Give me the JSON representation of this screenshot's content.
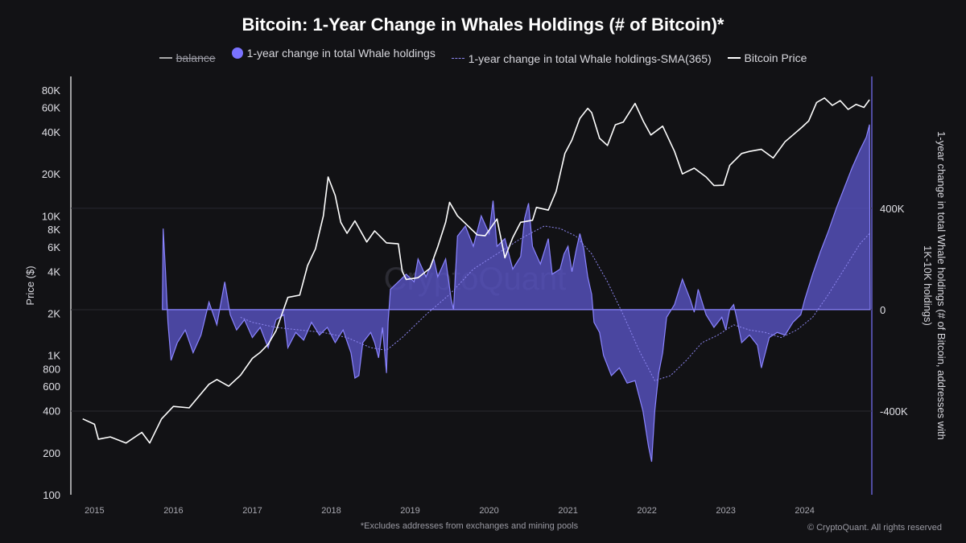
{
  "chart_data": {
    "type": "line",
    "title": "Bitcoin: 1-Year Change in Whales Holdings (# of Bitcoin)*",
    "legend": [
      {
        "name": "balance",
        "style": "line-strikethrough",
        "color": "#aaaaaa"
      },
      {
        "name": "1-year change in total Whale holdings",
        "style": "area",
        "color": "#7a72ff"
      },
      {
        "name": "1-year change in total Whale holdings-SMA(365)",
        "style": "dashed",
        "color": "#8d86f0"
      },
      {
        "name": "Bitcoin Price",
        "style": "line",
        "color": "#ffffff"
      }
    ],
    "ylabel_left": "Price ($)",
    "ylabel_right": "1-year change in total Whale holdings (# of Bitcoin, addresses with 1K-10K holdings)",
    "y_left_scale": "log",
    "y_left_range": [
      100,
      100000
    ],
    "y_left_ticks": [
      {
        "label": "80K",
        "value": 80000
      },
      {
        "label": "60K",
        "value": 60000
      },
      {
        "label": "40K",
        "value": 40000
      },
      {
        "label": "20K",
        "value": 20000
      },
      {
        "label": "10K",
        "value": 10000
      },
      {
        "label": "8K",
        "value": 8000
      },
      {
        "label": "6K",
        "value": 6000
      },
      {
        "label": "4K",
        "value": 4000
      },
      {
        "label": "2K",
        "value": 2000
      },
      {
        "label": "1K",
        "value": 1000
      },
      {
        "label": "800",
        "value": 800
      },
      {
        "label": "600",
        "value": 600
      },
      {
        "label": "400",
        "value": 400
      },
      {
        "label": "200",
        "value": 200
      },
      {
        "label": "100",
        "value": 100
      }
    ],
    "y_right_range": [
      -730000,
      920000
    ],
    "y_right_ticks": [
      {
        "label": "400K",
        "value": 400000
      },
      {
        "label": "0",
        "value": 0
      },
      {
        "label": "-400K",
        "value": -400000
      }
    ],
    "x_range": [
      2014.7,
      2024.85
    ],
    "x_ticks": [
      {
        "label": "2015",
        "value": 2015
      },
      {
        "label": "2016",
        "value": 2016
      },
      {
        "label": "2017",
        "value": 2017
      },
      {
        "label": "2018",
        "value": 2018
      },
      {
        "label": "2019",
        "value": 2019
      },
      {
        "label": "2020",
        "value": 2020
      },
      {
        "label": "2021",
        "value": 2021
      },
      {
        "label": "2022",
        "value": 2022
      },
      {
        "label": "2023",
        "value": 2023
      },
      {
        "label": "2024",
        "value": 2024
      }
    ],
    "series": [
      {
        "name": "Bitcoin Price",
        "axis": "left",
        "points": [
          [
            2014.85,
            350
          ],
          [
            2015.0,
            320
          ],
          [
            2015.05,
            250
          ],
          [
            2015.2,
            260
          ],
          [
            2015.4,
            235
          ],
          [
            2015.6,
            280
          ],
          [
            2015.7,
            235
          ],
          [
            2015.85,
            350
          ],
          [
            2016.0,
            430
          ],
          [
            2016.2,
            420
          ],
          [
            2016.45,
            620
          ],
          [
            2016.55,
            670
          ],
          [
            2016.7,
            600
          ],
          [
            2016.85,
            720
          ],
          [
            2017.0,
            950
          ],
          [
            2017.1,
            1050
          ],
          [
            2017.2,
            1200
          ],
          [
            2017.3,
            1500
          ],
          [
            2017.45,
            2600
          ],
          [
            2017.6,
            2700
          ],
          [
            2017.7,
            4400
          ],
          [
            2017.8,
            5800
          ],
          [
            2017.9,
            10000
          ],
          [
            2017.96,
            19000
          ],
          [
            2018.05,
            14000
          ],
          [
            2018.12,
            9000
          ],
          [
            2018.2,
            7500
          ],
          [
            2018.3,
            9200
          ],
          [
            2018.45,
            6500
          ],
          [
            2018.55,
            7800
          ],
          [
            2018.7,
            6400
          ],
          [
            2018.85,
            6300
          ],
          [
            2018.9,
            4000
          ],
          [
            2018.95,
            3500
          ],
          [
            2019.1,
            3600
          ],
          [
            2019.25,
            4200
          ],
          [
            2019.35,
            6000
          ],
          [
            2019.45,
            9000
          ],
          [
            2019.5,
            12500
          ],
          [
            2019.6,
            10000
          ],
          [
            2019.75,
            8300
          ],
          [
            2019.85,
            7300
          ],
          [
            2019.95,
            7200
          ],
          [
            2020.1,
            9500
          ],
          [
            2020.2,
            5000
          ],
          [
            2020.3,
            7000
          ],
          [
            2020.4,
            9000
          ],
          [
            2020.55,
            9300
          ],
          [
            2020.6,
            11500
          ],
          [
            2020.75,
            11000
          ],
          [
            2020.85,
            15000
          ],
          [
            2020.96,
            28000
          ],
          [
            2021.05,
            35000
          ],
          [
            2021.15,
            50000
          ],
          [
            2021.25,
            59000
          ],
          [
            2021.3,
            55000
          ],
          [
            2021.4,
            36000
          ],
          [
            2021.5,
            32000
          ],
          [
            2021.6,
            45000
          ],
          [
            2021.7,
            47000
          ],
          [
            2021.85,
            64000
          ],
          [
            2021.96,
            47000
          ],
          [
            2022.05,
            38000
          ],
          [
            2022.2,
            44000
          ],
          [
            2022.35,
            29000
          ],
          [
            2022.45,
            20000
          ],
          [
            2022.6,
            22000
          ],
          [
            2022.75,
            19000
          ],
          [
            2022.85,
            16500
          ],
          [
            2022.97,
            16600
          ],
          [
            2023.05,
            23000
          ],
          [
            2023.2,
            28000
          ],
          [
            2023.3,
            29000
          ],
          [
            2023.45,
            30000
          ],
          [
            2023.6,
            26000
          ],
          [
            2023.75,
            34000
          ],
          [
            2023.85,
            38000
          ],
          [
            2023.96,
            43000
          ],
          [
            2024.05,
            48000
          ],
          [
            2024.15,
            65000
          ],
          [
            2024.25,
            70000
          ],
          [
            2024.35,
            62000
          ],
          [
            2024.45,
            67000
          ],
          [
            2024.55,
            58000
          ],
          [
            2024.65,
            63000
          ],
          [
            2024.75,
            60000
          ],
          [
            2024.82,
            68000
          ]
        ]
      },
      {
        "name": "1-year change in total Whale holdings",
        "axis": "right",
        "points": [
          [
            2015.86,
            0
          ],
          [
            2015.87,
            320000
          ],
          [
            2015.9,
            150000
          ],
          [
            2015.93,
            -50000
          ],
          [
            2015.97,
            -200000
          ],
          [
            2016.05,
            -130000
          ],
          [
            2016.15,
            -80000
          ],
          [
            2016.25,
            -170000
          ],
          [
            2016.35,
            -100000
          ],
          [
            2016.45,
            30000
          ],
          [
            2016.55,
            -60000
          ],
          [
            2016.65,
            110000
          ],
          [
            2016.72,
            -20000
          ],
          [
            2016.8,
            -80000
          ],
          [
            2016.9,
            -40000
          ],
          [
            2017.0,
            -110000
          ],
          [
            2017.1,
            -70000
          ],
          [
            2017.2,
            -150000
          ],
          [
            2017.3,
            -40000
          ],
          [
            2017.4,
            -20000
          ],
          [
            2017.45,
            -150000
          ],
          [
            2017.55,
            -90000
          ],
          [
            2017.65,
            -120000
          ],
          [
            2017.75,
            -50000
          ],
          [
            2017.85,
            -100000
          ],
          [
            2017.95,
            -70000
          ],
          [
            2018.05,
            -130000
          ],
          [
            2018.15,
            -80000
          ],
          [
            2018.25,
            -170000
          ],
          [
            2018.3,
            -270000
          ],
          [
            2018.35,
            -260000
          ],
          [
            2018.4,
            -130000
          ],
          [
            2018.5,
            -90000
          ],
          [
            2018.55,
            -130000
          ],
          [
            2018.6,
            -190000
          ],
          [
            2018.65,
            -70000
          ],
          [
            2018.7,
            -250000
          ],
          [
            2018.72,
            -50000
          ],
          [
            2018.75,
            80000
          ],
          [
            2018.85,
            110000
          ],
          [
            2018.95,
            140000
          ],
          [
            2019.05,
            110000
          ],
          [
            2019.1,
            200000
          ],
          [
            2019.2,
            130000
          ],
          [
            2019.3,
            200000
          ],
          [
            2019.35,
            130000
          ],
          [
            2019.45,
            200000
          ],
          [
            2019.52,
            40000
          ],
          [
            2019.55,
            0
          ],
          [
            2019.6,
            290000
          ],
          [
            2019.7,
            330000
          ],
          [
            2019.8,
            250000
          ],
          [
            2019.9,
            370000
          ],
          [
            2020.0,
            300000
          ],
          [
            2020.05,
            430000
          ],
          [
            2020.1,
            250000
          ],
          [
            2020.2,
            280000
          ],
          [
            2020.3,
            160000
          ],
          [
            2020.4,
            210000
          ],
          [
            2020.45,
            360000
          ],
          [
            2020.5,
            420000
          ],
          [
            2020.55,
            250000
          ],
          [
            2020.65,
            180000
          ],
          [
            2020.75,
            280000
          ],
          [
            2020.8,
            140000
          ],
          [
            2020.9,
            160000
          ],
          [
            2020.95,
            220000
          ],
          [
            2021.0,
            250000
          ],
          [
            2021.05,
            150000
          ],
          [
            2021.1,
            230000
          ],
          [
            2021.15,
            300000
          ],
          [
            2021.2,
            240000
          ],
          [
            2021.25,
            130000
          ],
          [
            2021.3,
            60000
          ],
          [
            2021.33,
            -50000
          ],
          [
            2021.4,
            -90000
          ],
          [
            2021.45,
            -180000
          ],
          [
            2021.55,
            -260000
          ],
          [
            2021.65,
            -230000
          ],
          [
            2021.75,
            -290000
          ],
          [
            2021.85,
            -280000
          ],
          [
            2021.95,
            -400000
          ],
          [
            2022.02,
            -540000
          ],
          [
            2022.06,
            -600000
          ],
          [
            2022.1,
            -400000
          ],
          [
            2022.15,
            -250000
          ],
          [
            2022.2,
            -170000
          ],
          [
            2022.25,
            -30000
          ],
          [
            2022.35,
            20000
          ],
          [
            2022.45,
            120000
          ],
          [
            2022.5,
            80000
          ],
          [
            2022.55,
            40000
          ],
          [
            2022.6,
            -10000
          ],
          [
            2022.65,
            80000
          ],
          [
            2022.75,
            -20000
          ],
          [
            2022.85,
            -70000
          ],
          [
            2022.95,
            -30000
          ],
          [
            2023.0,
            -80000
          ],
          [
            2023.05,
            0
          ],
          [
            2023.1,
            20000
          ],
          [
            2023.15,
            -50000
          ],
          [
            2023.2,
            -130000
          ],
          [
            2023.3,
            -100000
          ],
          [
            2023.4,
            -140000
          ],
          [
            2023.45,
            -230000
          ],
          [
            2023.55,
            -110000
          ],
          [
            2023.65,
            -90000
          ],
          [
            2023.75,
            -100000
          ],
          [
            2023.85,
            -50000
          ],
          [
            2023.95,
            -20000
          ],
          [
            2024.0,
            40000
          ],
          [
            2024.1,
            140000
          ],
          [
            2024.2,
            230000
          ],
          [
            2024.3,
            310000
          ],
          [
            2024.4,
            400000
          ],
          [
            2024.5,
            480000
          ],
          [
            2024.6,
            560000
          ],
          [
            2024.7,
            630000
          ],
          [
            2024.78,
            680000
          ],
          [
            2024.82,
            730000
          ],
          [
            2024.83,
            0
          ]
        ]
      },
      {
        "name": "1-year change in total Whale holdings-SMA(365)",
        "axis": "right",
        "points": [
          [
            2016.85,
            -30000
          ],
          [
            2017.0,
            -50000
          ],
          [
            2017.3,
            -70000
          ],
          [
            2017.6,
            -80000
          ],
          [
            2017.9,
            -90000
          ],
          [
            2018.2,
            -110000
          ],
          [
            2018.5,
            -150000
          ],
          [
            2018.7,
            -160000
          ],
          [
            2018.9,
            -110000
          ],
          [
            2019.2,
            -20000
          ],
          [
            2019.5,
            60000
          ],
          [
            2019.8,
            160000
          ],
          [
            2020.1,
            220000
          ],
          [
            2020.4,
            280000
          ],
          [
            2020.7,
            330000
          ],
          [
            2020.9,
            320000
          ],
          [
            2021.1,
            290000
          ],
          [
            2021.3,
            220000
          ],
          [
            2021.5,
            110000
          ],
          [
            2021.7,
            -20000
          ],
          [
            2021.9,
            -160000
          ],
          [
            2022.1,
            -280000
          ],
          [
            2022.3,
            -260000
          ],
          [
            2022.5,
            -200000
          ],
          [
            2022.7,
            -130000
          ],
          [
            2022.9,
            -100000
          ],
          [
            2023.1,
            -60000
          ],
          [
            2023.3,
            -80000
          ],
          [
            2023.5,
            -90000
          ],
          [
            2023.7,
            -110000
          ],
          [
            2023.9,
            -80000
          ],
          [
            2024.1,
            -30000
          ],
          [
            2024.3,
            60000
          ],
          [
            2024.5,
            160000
          ],
          [
            2024.7,
            260000
          ],
          [
            2024.82,
            300000
          ]
        ]
      }
    ],
    "footnote": "*Excludes addresses from exchanges and mining pools",
    "watermark": "CryptoQuant",
    "copyright": "© CryptoQuant. All rights reserved"
  }
}
